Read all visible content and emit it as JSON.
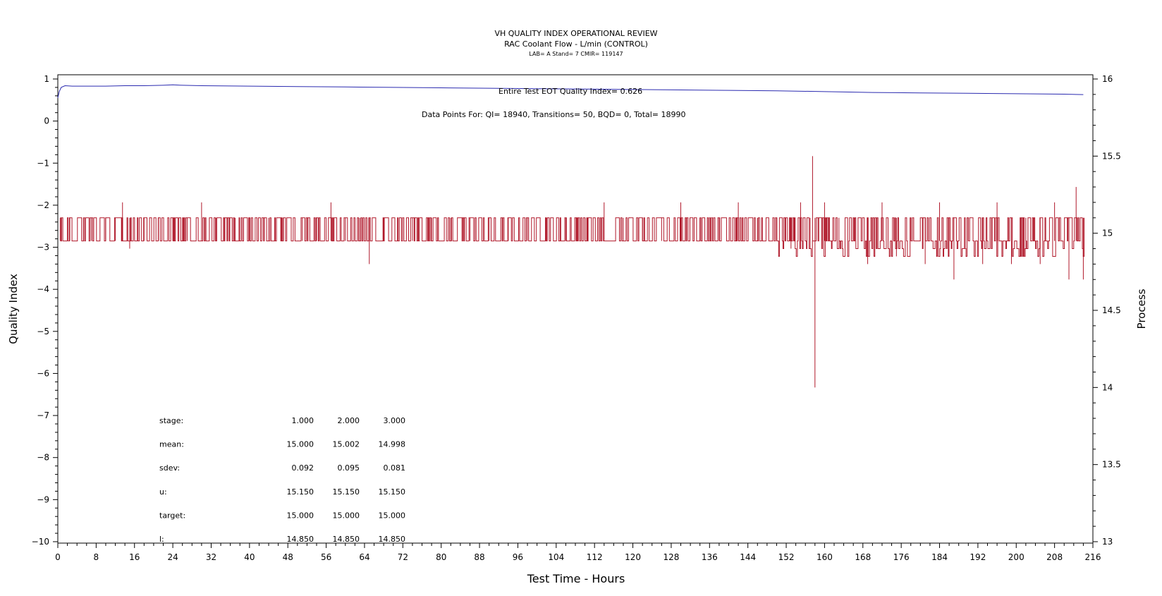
{
  "chart_data": {
    "type": "line",
    "title": "VH QUALITY INDEX OPERATIONAL REVIEW",
    "subtitle": "RAC Coolant Flow - L/min (CONTROL)",
    "subtitle2": "LAB= A Stand= 7 CMIR= 119147",
    "xlabel": "Test Time - Hours",
    "ylabel_left": "Quality Index",
    "ylabel_right": "Process",
    "xlim": [
      0,
      216
    ],
    "ylim_left": [
      -10,
      1
    ],
    "ylim_right": [
      13,
      16
    ],
    "x_ticks": [
      0,
      8,
      16,
      24,
      32,
      40,
      48,
      56,
      64,
      72,
      80,
      88,
      96,
      104,
      112,
      120,
      128,
      136,
      144,
      152,
      160,
      168,
      176,
      184,
      192,
      200,
      208,
      216
    ],
    "y_ticks_left": [
      1,
      0,
      -1,
      -2,
      -3,
      -4,
      -5,
      -6,
      -7,
      -8,
      -9,
      -10
    ],
    "y_ticks_right": [
      16,
      15.5,
      15,
      14.5,
      14,
      13.5,
      13
    ],
    "annotations": {
      "qi_text": "Entire Test EOT Quality Index=   0.626",
      "points_text": "Data Points For: QI= 18940, Transitions=    50, BQD=     0, Total= 18990"
    },
    "stats_table": {
      "rows": [
        {
          "label": "stage:",
          "values": [
            "1.000",
            "2.000",
            "3.000"
          ]
        },
        {
          "label": "mean:",
          "values": [
            "15.000",
            "15.002",
            "14.998"
          ]
        },
        {
          "label": "sdev:",
          "values": [
            "0.092",
            "0.095",
            "0.081"
          ]
        },
        {
          "label": "u:",
          "values": [
            "15.150",
            "15.150",
            "15.150"
          ]
        },
        {
          "label": "target:",
          "values": [
            "15.000",
            "15.000",
            "15.000"
          ]
        },
        {
          "label": "l:",
          "values": [
            "14.850",
            "14.850",
            "14.850"
          ]
        }
      ]
    },
    "series": [
      {
        "axis": "left",
        "color": "#2b2bb0",
        "x": [
          0,
          0.3,
          0.7,
          1.5,
          3,
          6,
          10,
          14,
          18,
          22,
          24,
          26,
          30,
          40,
          50,
          60,
          70,
          80,
          90,
          100,
          110,
          120,
          130,
          140,
          150,
          160,
          170,
          180,
          190,
          200,
          210,
          214
        ],
        "y": [
          0.55,
          0.7,
          0.8,
          0.84,
          0.83,
          0.83,
          0.83,
          0.84,
          0.84,
          0.85,
          0.86,
          0.85,
          0.84,
          0.83,
          0.82,
          0.81,
          0.8,
          0.79,
          0.78,
          0.77,
          0.76,
          0.75,
          0.74,
          0.73,
          0.72,
          0.7,
          0.68,
          0.67,
          0.66,
          0.65,
          0.64,
          0.63
        ]
      },
      {
        "axis": "right",
        "color": "#b0182a",
        "sampled": true,
        "levels": [
          15.1,
          14.95,
          14.9,
          14.85
        ],
        "x": [
          0.5,
          2.5,
          5,
          7,
          10,
          12,
          13.5,
          15,
          18,
          21,
          24,
          27,
          30,
          33,
          37,
          40,
          44,
          47,
          51,
          54,
          57,
          60,
          63,
          65,
          68,
          71,
          74,
          78,
          82,
          86,
          90,
          94,
          98,
          102,
          106,
          110,
          114,
          118,
          122,
          126,
          130,
          134,
          138,
          142,
          146,
          150,
          153,
          155,
          157,
          157.5,
          158,
          160,
          163,
          166,
          169,
          172,
          175,
          178,
          181,
          184,
          187,
          190,
          193,
          196,
          199,
          202,
          205,
          208,
          211,
          212.5,
          214
        ],
        "y": [
          14.95,
          15.1,
          14.95,
          15.1,
          14.95,
          15.1,
          15.2,
          14.9,
          15.1,
          14.95,
          15.1,
          14.95,
          15.2,
          14.95,
          15.1,
          14.95,
          15.1,
          14.95,
          15.1,
          14.95,
          15.2,
          15.1,
          14.95,
          14.8,
          15.1,
          14.95,
          15.1,
          14.95,
          15.1,
          14.95,
          15.1,
          14.95,
          15.1,
          14.95,
          15.1,
          14.95,
          15.2,
          14.95,
          15.1,
          14.95,
          15.2,
          14.95,
          15.1,
          15.2,
          14.95,
          15.1,
          14.9,
          15.2,
          14.9,
          15.5,
          14.0,
          15.2,
          14.9,
          15.1,
          14.8,
          15.2,
          14.85,
          15.1,
          14.8,
          15.2,
          14.7,
          15.1,
          14.8,
          15.2,
          14.8,
          15.1,
          14.8,
          15.2,
          14.7,
          15.3,
          14.7
        ]
      }
    ]
  }
}
